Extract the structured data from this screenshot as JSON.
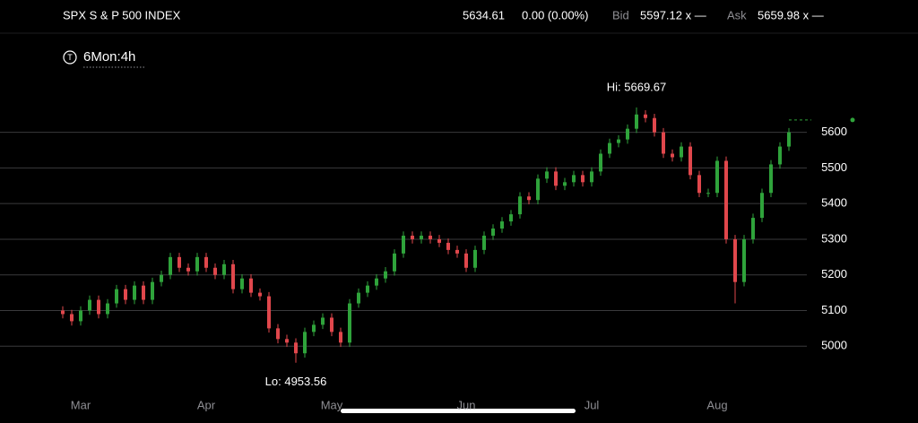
{
  "header": {
    "symbol": "SPX S & P 500 INDEX",
    "change": "0.00 (0.00%)",
    "bid_label": "Bid",
    "bid": "5597.12 x —",
    "ask_label": "Ask",
    "ask": "5659.98 x —",
    "timeframe_icon": "T",
    "timeframe": "6Mon:4h"
  },
  "chart_data": {
    "type": "candlestick",
    "last_price": 5634.61,
    "annotations": {
      "high": "Hi: 5669.67",
      "low": "Lo: 4953.56"
    },
    "up_color": "#2fa33b",
    "down_color": "#e0474c",
    "ylim": [
      4880,
      5760
    ],
    "yticks": [
      5000,
      5100,
      5200,
      5300,
      5400,
      5500,
      5600
    ],
    "grid": true,
    "categories": [
      null,
      null,
      "Mar",
      null,
      null,
      null,
      null,
      null,
      null,
      null,
      null,
      null,
      null,
      null,
      null,
      null,
      "Apr",
      null,
      null,
      null,
      null,
      null,
      null,
      null,
      null,
      null,
      null,
      null,
      null,
      null,
      "May",
      null,
      null,
      null,
      null,
      null,
      null,
      null,
      null,
      null,
      null,
      null,
      null,
      null,
      null,
      "Jun",
      null,
      null,
      null,
      null,
      null,
      null,
      null,
      null,
      null,
      null,
      null,
      null,
      null,
      "Jul",
      null,
      null,
      null,
      null,
      null,
      null,
      null,
      null,
      null,
      null,
      null,
      null,
      null,
      "Aug",
      null,
      null,
      null,
      null,
      null,
      null,
      null,
      null
    ],
    "open": [
      5100,
      5090,
      5070,
      5100,
      5130,
      5090,
      5120,
      5160,
      5130,
      5170,
      5130,
      5180,
      5200,
      5250,
      5220,
      5210,
      5250,
      5220,
      5200,
      5230,
      5160,
      5190,
      5150,
      5140,
      5050,
      5020,
      5010,
      4980,
      5040,
      5060,
      5080,
      5040,
      5010,
      5120,
      5150,
      5170,
      5190,
      5210,
      5260,
      5310,
      5300,
      5310,
      5300,
      5290,
      5270,
      5260,
      5220,
      5270,
      5310,
      5330,
      5350,
      5370,
      5420,
      5410,
      5470,
      5490,
      5450,
      5460,
      5480,
      5460,
      5490,
      5540,
      5570,
      5580,
      5610,
      5650,
      5640,
      5600,
      5540,
      5530,
      5560,
      5480,
      5430,
      5430,
      5520,
      5300,
      5180,
      5300,
      5360,
      5430,
      5510,
      5560
    ],
    "high": [
      5112,
      5102,
      5112,
      5142,
      5142,
      5132,
      5172,
      5172,
      5182,
      5182,
      5192,
      5212,
      5262,
      5262,
      5232,
      5262,
      5262,
      5232,
      5242,
      5242,
      5202,
      5202,
      5162,
      5152,
      5062,
      5032,
      5022,
      5052,
      5072,
      5092,
      5092,
      5052,
      5132,
      5162,
      5182,
      5202,
      5222,
      5272,
      5322,
      5322,
      5322,
      5322,
      5312,
      5302,
      5282,
      5272,
      5282,
      5322,
      5342,
      5362,
      5382,
      5432,
      5432,
      5482,
      5502,
      5502,
      5472,
      5492,
      5492,
      5502,
      5552,
      5582,
      5592,
      5622,
      5669.67,
      5662,
      5652,
      5612,
      5552,
      5572,
      5572,
      5492,
      5442,
      5532,
      5532,
      5312,
      5312,
      5372,
      5442,
      5522,
      5572,
      5612
    ],
    "low": [
      5078,
      5058,
      5058,
      5088,
      5078,
      5078,
      5108,
      5118,
      5118,
      5118,
      5118,
      5168,
      5188,
      5208,
      5198,
      5198,
      5208,
      5188,
      5188,
      5148,
      5148,
      5138,
      5128,
      5038,
      5008,
      4998,
      4953.56,
      4968,
      5028,
      5048,
      5028,
      4998,
      4998,
      5108,
      5138,
      5158,
      5178,
      5198,
      5248,
      5288,
      5288,
      5288,
      5278,
      5258,
      5248,
      5208,
      5208,
      5258,
      5298,
      5318,
      5338,
      5358,
      5398,
      5398,
      5458,
      5438,
      5438,
      5448,
      5448,
      5448,
      5478,
      5528,
      5558,
      5568,
      5598,
      5628,
      5588,
      5528,
      5518,
      5518,
      5468,
      5418,
      5418,
      5418,
      5288,
      5120,
      5168,
      5288,
      5348,
      5418,
      5498,
      5548
    ],
    "close": [
      5090,
      5070,
      5100,
      5130,
      5090,
      5120,
      5160,
      5130,
      5170,
      5130,
      5180,
      5200,
      5250,
      5220,
      5210,
      5250,
      5220,
      5200,
      5230,
      5160,
      5190,
      5150,
      5140,
      5050,
      5020,
      5010,
      4980,
      5040,
      5060,
      5080,
      5040,
      5010,
      5120,
      5150,
      5170,
      5190,
      5210,
      5260,
      5310,
      5300,
      5310,
      5300,
      5290,
      5270,
      5260,
      5220,
      5270,
      5310,
      5330,
      5350,
      5370,
      5420,
      5410,
      5470,
      5490,
      5450,
      5460,
      5480,
      5460,
      5490,
      5540,
      5570,
      5580,
      5610,
      5650,
      5640,
      5600,
      5540,
      5530,
      5560,
      5480,
      5430,
      5430,
      5520,
      5300,
      5180,
      5300,
      5360,
      5430,
      5510,
      5560,
      5600
    ]
  }
}
